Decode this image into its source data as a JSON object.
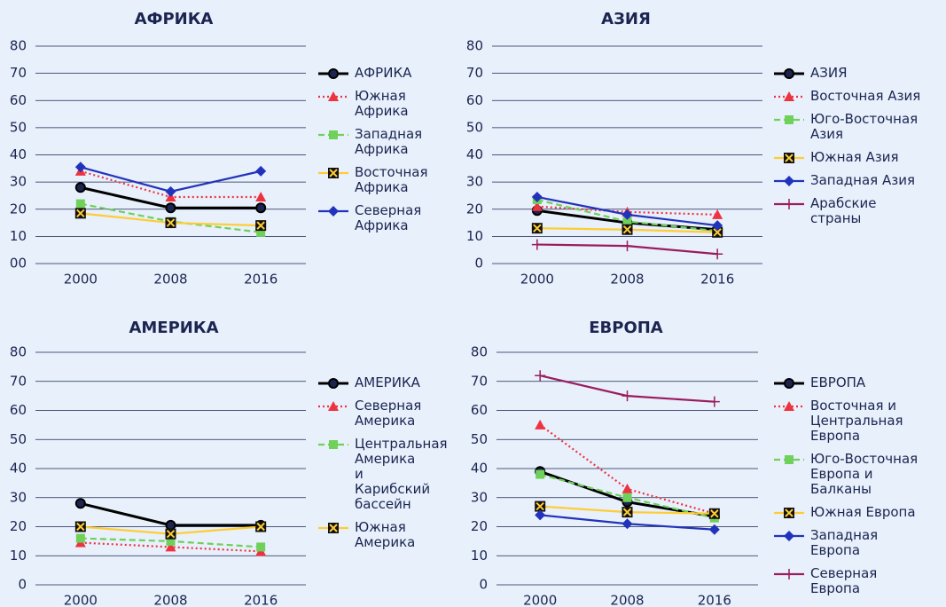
{
  "chart_data": [
    {
      "type": "line",
      "title": "АФРИКА",
      "categories": [
        "2000",
        "2008",
        "2016"
      ],
      "ylim": [
        0,
        80
      ],
      "yticks": [
        {
          "value": 0,
          "label": "00"
        },
        10,
        20,
        30,
        40,
        50,
        60,
        70,
        80
      ],
      "grid": true,
      "legend": "right",
      "series": [
        {
          "name": "АФРИКА",
          "color": "#000000",
          "marker": "circle",
          "dash": "solid",
          "values": [
            28,
            20.5,
            20.5
          ]
        },
        {
          "name": "Южная Африка",
          "color": "#ee3340",
          "marker": "triangle",
          "dash": "dotted",
          "values": [
            34,
            24.5,
            24.5
          ]
        },
        {
          "name": "Западная Африка",
          "color": "#6fd05a",
          "marker": "square",
          "dash": "dashed",
          "values": [
            22,
            15.5,
            11.5
          ]
        },
        {
          "name": "Восточная Африка",
          "color": "#ffcc33",
          "marker": "xsquare",
          "dash": "solid",
          "values": [
            18.5,
            15,
            14
          ]
        },
        {
          "name": "Северная Африка",
          "color": "#2233bb",
          "marker": "diamond",
          "dash": "solid",
          "values": [
            35.5,
            26.5,
            34
          ]
        }
      ]
    },
    {
      "type": "line",
      "title": "АЗИЯ",
      "categories": [
        "2000",
        "2008",
        "2016"
      ],
      "ylim": [
        0,
        80
      ],
      "yticks": [
        0,
        10,
        20,
        30,
        40,
        50,
        60,
        70,
        80
      ],
      "grid": true,
      "legend": "right",
      "series": [
        {
          "name": "АЗИЯ",
          "color": "#000000",
          "marker": "circle",
          "dash": "solid",
          "values": [
            19.5,
            15,
            12.5
          ]
        },
        {
          "name": "Восточная Азия",
          "color": "#ee3340",
          "marker": "triangle",
          "dash": "dotted",
          "values": [
            21,
            19,
            18
          ]
        },
        {
          "name": "Юго-Восточная Азия",
          "color": "#6fd05a",
          "marker": "square",
          "dash": "dashed",
          "values": [
            23.5,
            15.5,
            12
          ]
        },
        {
          "name": "Южная Азия",
          "color": "#ffcc33",
          "marker": "xsquare",
          "dash": "solid",
          "values": [
            13,
            12.5,
            11.5
          ]
        },
        {
          "name": "Западная Азия",
          "color": "#2233bb",
          "marker": "diamond",
          "dash": "solid",
          "values": [
            24.5,
            18,
            14
          ]
        },
        {
          "name": "Арабские страны",
          "color": "#9b1c5e",
          "marker": "plus",
          "dash": "solid",
          "values": [
            7,
            6.5,
            3.5
          ]
        }
      ]
    },
    {
      "type": "line",
      "title": "АМЕРИКА",
      "categories": [
        "2000",
        "2008",
        "2016"
      ],
      "ylim": [
        0,
        80
      ],
      "yticks": [
        0,
        10,
        20,
        30,
        40,
        50,
        60,
        70,
        80
      ],
      "grid": true,
      "legend": "right",
      "series": [
        {
          "name": "АМЕРИКА",
          "color": "#000000",
          "marker": "circle",
          "dash": "solid",
          "values": [
            28,
            20.5,
            20.5
          ]
        },
        {
          "name": "Северная Америка",
          "color": "#ee3340",
          "marker": "triangle",
          "dash": "dotted",
          "values": [
            14.5,
            13,
            11.5
          ]
        },
        {
          "name": "Центральная Америка и Карибский бассейн",
          "color": "#6fd05a",
          "marker": "square",
          "dash": "dashed",
          "values": [
            16,
            15,
            13
          ]
        },
        {
          "name": "Южная Америка",
          "color": "#ffcc33",
          "marker": "xsquare",
          "dash": "solid",
          "values": [
            20,
            17.5,
            20
          ]
        }
      ]
    },
    {
      "type": "line",
      "title": "ЕВРОПА",
      "categories": [
        "2000",
        "2008",
        "2016"
      ],
      "ylim": [
        0,
        80
      ],
      "yticks": [
        0,
        10,
        20,
        30,
        40,
        50,
        60,
        70,
        80
      ],
      "grid": true,
      "legend": "right",
      "series": [
        {
          "name": "ЕВРОПА",
          "color": "#000000",
          "marker": "circle",
          "dash": "solid",
          "values": [
            39,
            28.5,
            23.5
          ]
        },
        {
          "name": "Восточная и Центральная Европа",
          "color": "#ee3340",
          "marker": "triangle",
          "dash": "dotted",
          "values": [
            55,
            33,
            24.5
          ]
        },
        {
          "name": "Юго-Восточная Европа и Балканы",
          "color": "#6fd05a",
          "marker": "square",
          "dash": "dashed",
          "values": [
            38,
            30,
            23
          ]
        },
        {
          "name": "Южная Европа",
          "color": "#ffcc33",
          "marker": "xsquare",
          "dash": "solid",
          "values": [
            27,
            25,
            24.5
          ]
        },
        {
          "name": "Западная Европа",
          "color": "#2233bb",
          "marker": "diamond",
          "dash": "solid",
          "values": [
            24,
            21,
            19
          ]
        },
        {
          "name": "Северная Европа",
          "color": "#9b1c5e",
          "marker": "plus",
          "dash": "solid",
          "values": [
            72,
            65,
            63
          ]
        }
      ]
    }
  ]
}
